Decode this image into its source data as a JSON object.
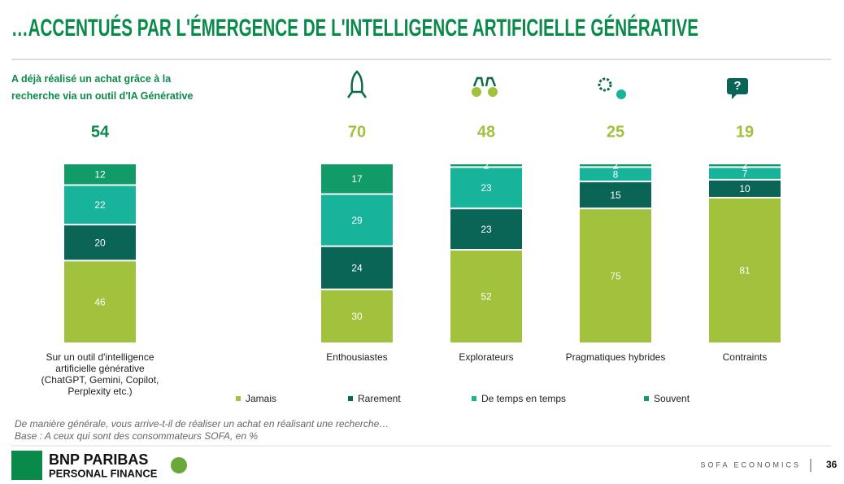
{
  "chart_data": {
    "type": "stacked_bar",
    "title": "…ACCENTUÉS PAR L'ÉMERGENCE DE L'INTELLIGENCE ARTIFICIELLE GÉNÉRATIVE",
    "subtitle": "A déjà réalisé un achat grâce à la recherche via un outil d'IA Générative",
    "headline_values": [
      54,
      70,
      48,
      25,
      19
    ],
    "categories": [
      "Sur un outil d'intelligence artificielle générative (ChatGPT, Gemini, Copilot, Perplexity etc.)",
      "Enthousiastes",
      "Explorateurs",
      "Pragmatiques hybrides",
      "Contraints"
    ],
    "series": [
      {
        "name": "Jamais",
        "color": "#a2c13c",
        "values": [
          46,
          30,
          52,
          75,
          81
        ]
      },
      {
        "name": "Rarement",
        "color": "#0b6557",
        "values": [
          20,
          24,
          23,
          15,
          10
        ]
      },
      {
        "name": "De temps en temps",
        "color": "#17b39a",
        "values": [
          22,
          29,
          23,
          8,
          7
        ]
      },
      {
        "name": "Souvent",
        "color": "#109b69",
        "values": [
          12,
          17,
          2,
          2,
          2
        ]
      }
    ],
    "footnotes": [
      "De manière générale, vous arrive-t-il de réaliser un achat en réalisant une recherche…",
      "Base : A ceux qui sont des consommateurs SOFA, en %"
    ]
  },
  "footer": {
    "brand": "BNP PARIBAS",
    "division": "PERSONAL FINANCE",
    "source": "SOFA ECONOMICS",
    "page": "36"
  }
}
